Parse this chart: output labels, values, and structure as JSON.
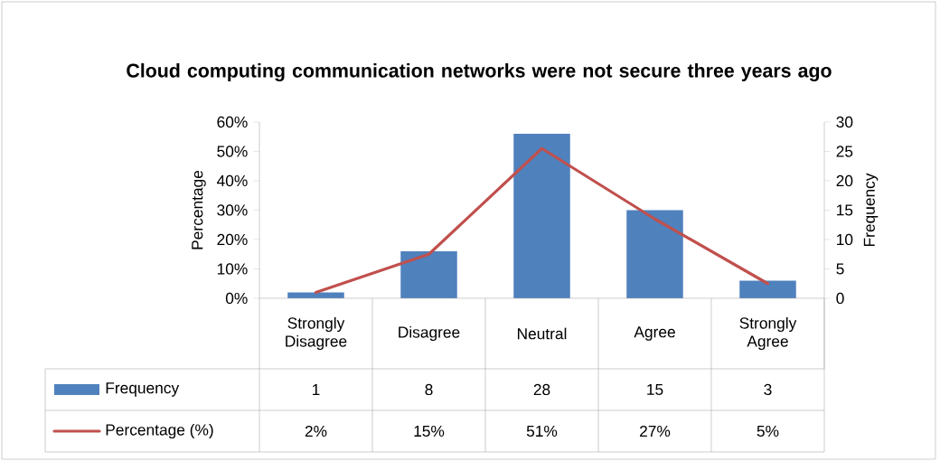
{
  "chart_data": {
    "type": "bar",
    "title": "Cloud computing communication networks were not secure three years ago",
    "categories": [
      "Strongly Disagree",
      "Disagree",
      "Neutral",
      "Agree",
      "Strongly Agree"
    ],
    "series": [
      {
        "name": "Frequency",
        "axis": "y2",
        "color": "#4f81bd",
        "values": [
          1,
          8,
          28,
          15,
          3
        ],
        "value_labels": [
          "1",
          "8",
          "28",
          "15",
          "3"
        ]
      },
      {
        "name": "Percentage (%)",
        "type": "line",
        "axis": "y",
        "color": "#c0504d",
        "values": [
          2,
          15,
          51,
          27,
          5
        ],
        "value_labels": [
          "2%",
          "15%",
          "51%",
          "27%",
          "5%"
        ]
      }
    ],
    "ylabel": "Percentage",
    "y2label": "Frequency",
    "ylim": [
      0,
      60
    ],
    "yticks": [
      {
        "value": 0,
        "label": "0%"
      },
      {
        "value": 10,
        "label": "10%"
      },
      {
        "value": 20,
        "label": "20%"
      },
      {
        "value": 30,
        "label": "30%"
      },
      {
        "value": 40,
        "label": "40%"
      },
      {
        "value": 50,
        "label": "50%"
      },
      {
        "value": 60,
        "label": "60%"
      }
    ],
    "y2lim": [
      0,
      30
    ],
    "y2ticks": [
      0,
      5,
      10,
      15,
      20,
      25,
      30
    ],
    "legend": "bottom"
  }
}
